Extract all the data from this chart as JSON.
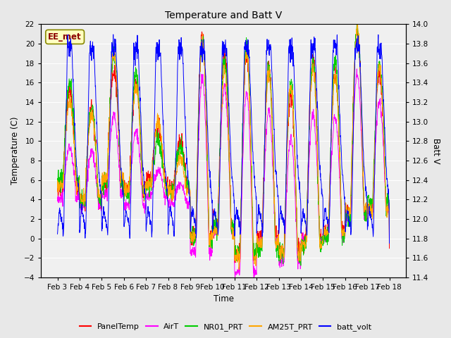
{
  "title": "Temperature and Batt V",
  "xlabel": "Time",
  "ylabel_left": "Temperature (C)",
  "ylabel_right": "Batt V",
  "ylim_left": [
    -4,
    22
  ],
  "ylim_right": [
    11.4,
    14.0
  ],
  "yticks_left": [
    -4,
    -2,
    0,
    2,
    4,
    6,
    8,
    10,
    12,
    14,
    16,
    18,
    20,
    22
  ],
  "yticks_right": [
    11.4,
    11.6,
    11.8,
    12.0,
    12.2,
    12.4,
    12.6,
    12.8,
    13.0,
    13.2,
    13.4,
    13.6,
    13.8,
    14.0
  ],
  "xtick_labels": [
    "Feb 3",
    "Feb 4",
    "Feb 5",
    "Feb 6",
    "Feb 7",
    "Feb 8",
    "Feb 9",
    "Feb 10",
    "Feb 11",
    "Feb 12",
    "Feb 13",
    "Feb 14",
    "Feb 15",
    "Feb 16",
    "Feb 17",
    "Feb 18"
  ],
  "annotation_text": "EE_met",
  "annotation_color": "#8B0000",
  "annotation_bg": "#FFFFC0",
  "bg_color": "#E8E8E8",
  "plot_bg_color": "#F0F0F0",
  "grid_color": "#FFFFFF",
  "colors": {
    "PanelTemp": "#FF0000",
    "AirT": "#FF00FF",
    "NR01_PRT": "#00CC00",
    "AM25T_PRT": "#FFA500",
    "batt_volt": "#0000FF"
  },
  "n_points": 1500,
  "days": 15,
  "figsize": [
    6.4,
    4.8
  ],
  "dpi": 100
}
